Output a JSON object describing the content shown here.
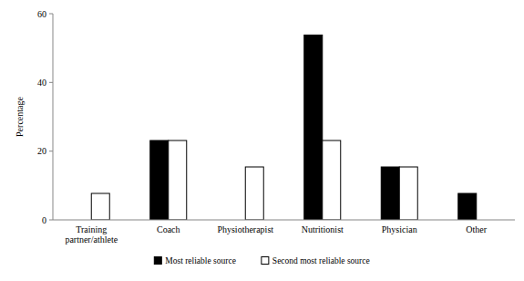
{
  "chart_data": {
    "type": "bar",
    "y_label": "Percentage",
    "categories": [
      "Training partner/athlete",
      "Coach",
      "Physiotherapist",
      "Nutritionist",
      "Physician",
      "Other"
    ],
    "series": [
      {
        "name": "Most reliable source",
        "color": "#000000",
        "values": [
          0,
          23.1,
          0,
          53.8,
          15.4,
          7.7
        ]
      },
      {
        "name": "Second most reliable source",
        "color": "#ffffff",
        "values": [
          7.7,
          23.1,
          15.4,
          23.1,
          15.4,
          0
        ]
      }
    ],
    "ylim": [
      0,
      60
    ],
    "yticks": [
      0,
      20,
      40,
      60
    ],
    "grid": false,
    "legend": "bottom"
  }
}
